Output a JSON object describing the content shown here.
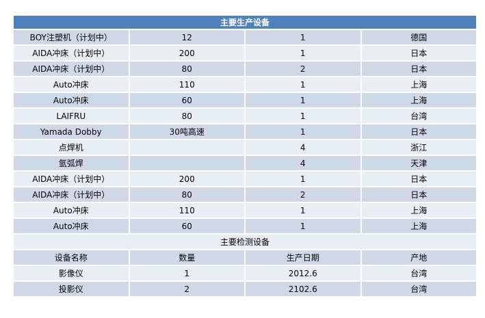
{
  "title": "主要生产设备",
  "production": [
    [
      "BOY注塑机（计划中）",
      "12",
      "1",
      "德国"
    ],
    [
      "AIDA冲床（计划中）",
      "200",
      "1",
      "日本"
    ],
    [
      "AIDA冲床（计划中）",
      "80",
      "2",
      "日本"
    ],
    [
      "Auto冲床",
      "110",
      "1",
      "上海"
    ],
    [
      "Auto冲床",
      "60",
      "1",
      "上海"
    ],
    [
      "LAIFRU",
      "80",
      "1",
      "台湾"
    ],
    [
      "Yamada Dobby",
      "30吨高速",
      "1",
      "日本"
    ],
    [
      "点焊机",
      "",
      "4",
      "浙江"
    ],
    [
      "氩弧焊",
      "",
      "4",
      "天津"
    ],
    [
      "AIDA冲床（计划中）",
      "200",
      "1",
      "日本"
    ],
    [
      "AIDA冲床（计划中）",
      "80",
      "2",
      "日本"
    ],
    [
      "Auto冲床",
      "110",
      "1",
      "上海"
    ],
    [
      "Auto冲床",
      "60",
      "1",
      "上海"
    ]
  ],
  "inspection_title": "主要检测设备",
  "inspection_headers": [
    "设备名称",
    "数量",
    "生产日期",
    "产地"
  ],
  "inspection": [
    [
      "影像仪",
      "1",
      "2012.6",
      "台湾"
    ],
    [
      "投影仪",
      "2",
      "2102.6",
      "台湾"
    ]
  ]
}
